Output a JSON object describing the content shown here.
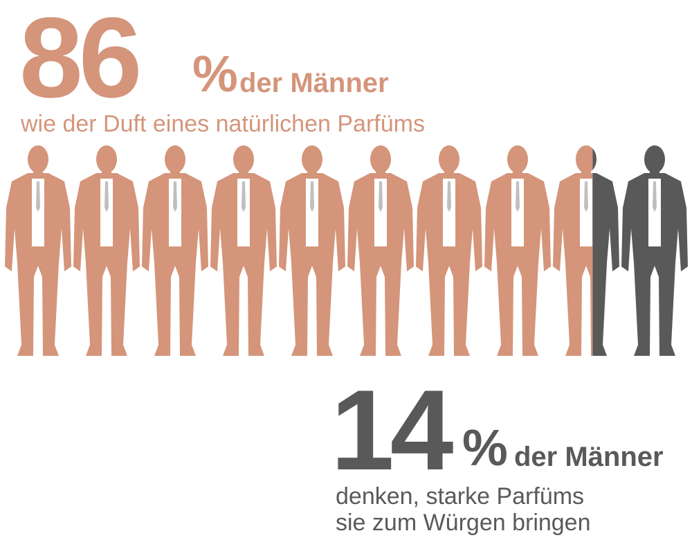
{
  "stats": [
    {
      "value": 86,
      "unit": "%",
      "label": "der Männer",
      "caption": [
        "wie der Duft eines natürlichen Parfüms"
      ],
      "color": "#d4957b"
    },
    {
      "value": 14,
      "unit": "%",
      "label": "der Männer",
      "caption": [
        "denken, starke Parfüms",
        "sie zum Würgen bringen"
      ],
      "color": "#595959"
    }
  ]
}
